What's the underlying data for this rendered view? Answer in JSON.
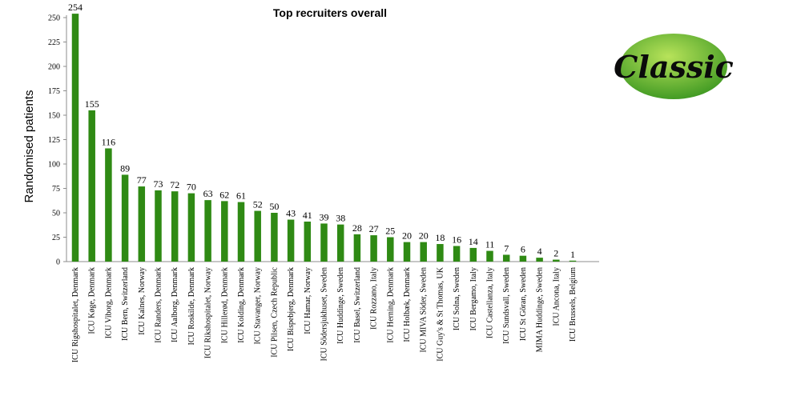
{
  "logo": {
    "text": "Classic"
  },
  "colors": {
    "bar": "#2f8a14",
    "axis": "#8c8c8c",
    "logo_fill_light": "#a9d94a",
    "logo_fill_dark": "#3f9a1e"
  },
  "chart_data": {
    "type": "bar",
    "title": "Top recruiters overall",
    "xlabel": "",
    "ylabel": "Randomised patients",
    "ylim": [
      0,
      250
    ],
    "yticks": [
      0,
      25,
      50,
      75,
      100,
      125,
      150,
      175,
      200,
      225,
      250
    ],
    "grid": false,
    "categories": [
      "ICU Rigshospitalet, Denmark",
      "ICU Køge, Denmark",
      "ICU Viborg, Denmark",
      "ICU Bern, Switzerland",
      "ICU Kalnes, Norway",
      "ICU Randers, Denmark",
      "ICU Aalborg, Denmark",
      "ICU Roskilde, Denmark",
      "ICU Rikshospitalet, Norway",
      "ICU Hillerød, Denmark",
      "ICU Kolding, Denmark",
      "ICU Stavanger, Norway",
      "ICU Pilsen, Czech Republic",
      "ICU Bispebjerg, Denmark",
      "ICU Hamar, Norway",
      "ICU Södersjukhuset, Sweden",
      "ICU Huddinge, Sweden",
      "ICU Basel, Switzerland",
      "ICU Rozzano, Italy",
      "ICU Herning, Denmark",
      "ICU Holbæk, Denmark",
      "ICU MIVA Söder, Sweden",
      "ICU Guy's & St Thomas, UK",
      "ICU Solna, Sweden",
      "ICU Bergamo, Italy",
      "ICU Castellanza, Italy",
      "ICU Sundsvall, Sweden",
      "ICU St Göran, Sweden",
      "MIMA Huddinge, Sweden",
      "ICU Ancona, Italy",
      "ICU Brussels, Belgium"
    ],
    "values": [
      254,
      155,
      116,
      89,
      77,
      73,
      72,
      70,
      63,
      62,
      61,
      52,
      50,
      43,
      41,
      39,
      38,
      28,
      27,
      25,
      20,
      20,
      18,
      16,
      14,
      11,
      7,
      6,
      4,
      2,
      1
    ]
  }
}
